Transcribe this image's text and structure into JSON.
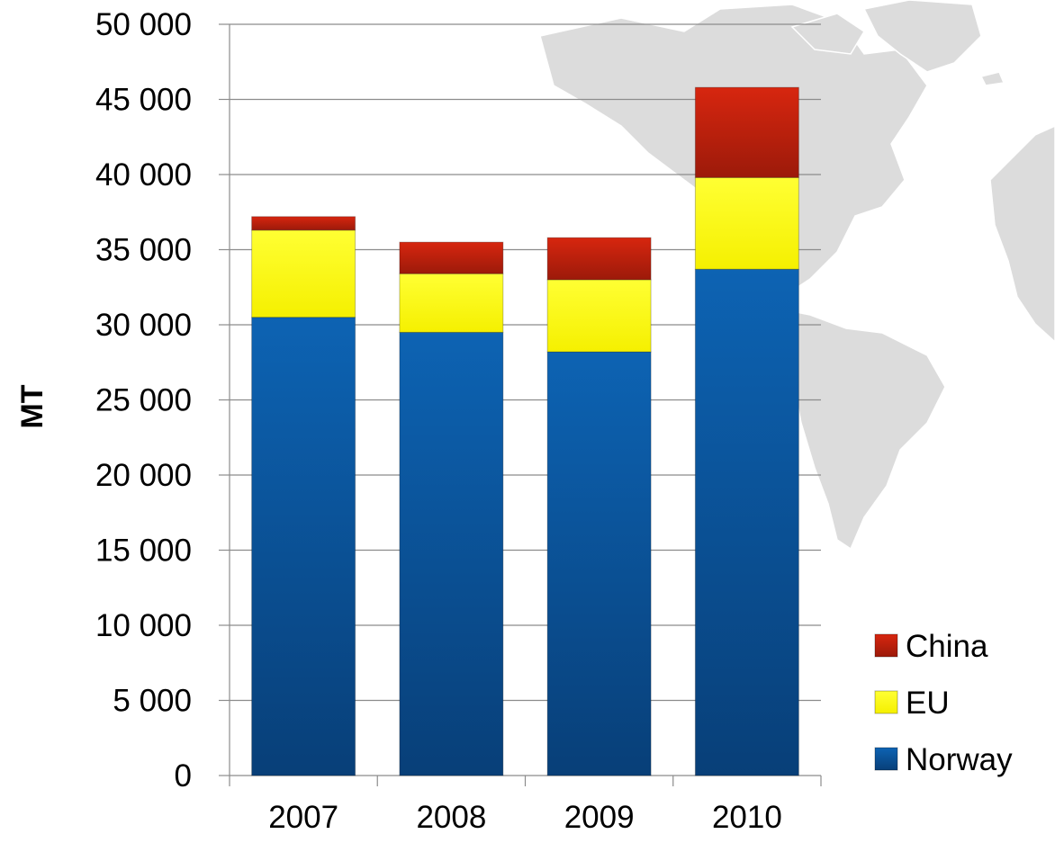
{
  "chart_data": {
    "type": "bar",
    "stacked": true,
    "categories": [
      "2007",
      "2008",
      "2009",
      "2010"
    ],
    "series": [
      {
        "name": "Norway",
        "values": [
          30500,
          29500,
          28200,
          33700
        ],
        "color": "#0b5aa3"
      },
      {
        "name": "EU",
        "values": [
          5800,
          3900,
          4800,
          6100
        ],
        "color": "#ffff00"
      },
      {
        "name": "China",
        "values": [
          900,
          2100,
          2800,
          6000
        ],
        "color": "#c8210e"
      }
    ],
    "title": "",
    "xlabel": "",
    "ylabel": "MT",
    "ylim": [
      0,
      50000
    ],
    "yticks": [
      0,
      5000,
      10000,
      15000,
      20000,
      25000,
      30000,
      35000,
      40000,
      45000,
      50000
    ],
    "ytick_labels": [
      "0",
      "5 000",
      "10 000",
      "15 000",
      "20 000",
      "25 000",
      "30 000",
      "35 000",
      "40 000",
      "45 000",
      "50 000"
    ],
    "grid": true,
    "legend_position": "bottom-right",
    "legend_order": [
      "China",
      "EU",
      "Norway"
    ],
    "background": "world-map-silhouette"
  }
}
